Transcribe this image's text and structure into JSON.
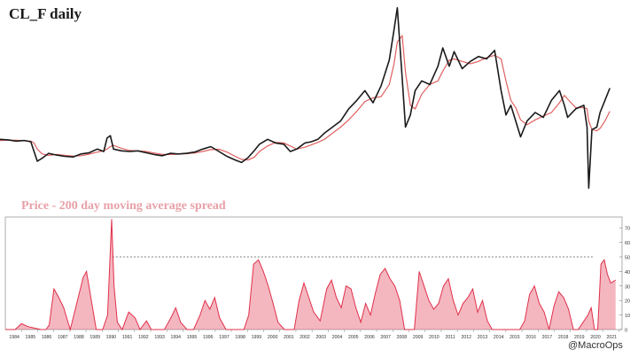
{
  "chart_data": [
    {
      "type": "line",
      "title": "CL_F daily",
      "ylabel": "",
      "xlabel": "",
      "grid": false,
      "x": [
        1984.0,
        1984.5,
        1985.0,
        1985.5,
        1985.9,
        1986.1,
        1986.3,
        1986.6,
        1987.0,
        1987.5,
        1988.0,
        1988.5,
        1989.0,
        1989.5,
        1990.0,
        1990.4,
        1990.6,
        1990.8,
        1991.0,
        1991.5,
        1992.0,
        1992.5,
        1993.0,
        1993.5,
        1994.0,
        1994.5,
        1995.0,
        1995.5,
        1996.0,
        1996.5,
        1997.0,
        1997.5,
        1998.0,
        1998.5,
        1998.9,
        1999.3,
        1999.7,
        2000.0,
        2000.5,
        2001.0,
        2001.5,
        2001.9,
        2002.3,
        2002.8,
        2003.2,
        2003.6,
        2004.0,
        2004.5,
        2005.0,
        2005.5,
        2006.0,
        2006.5,
        2007.0,
        2007.5,
        2008.0,
        2008.3,
        2008.5,
        2008.8,
        2009.0,
        2009.3,
        2009.6,
        2010.0,
        2010.5,
        2011.0,
        2011.3,
        2011.7,
        2012.0,
        2012.5,
        2013.0,
        2013.5,
        2014.0,
        2014.5,
        2014.9,
        2015.2,
        2015.5,
        2015.8,
        2016.1,
        2016.5,
        2017.0,
        2017.5,
        2018.0,
        2018.5,
        2018.8,
        2019.0,
        2019.5,
        2020.0,
        2020.2,
        2020.3,
        2020.5,
        2020.8,
        2021.0,
        2021.3,
        2021.6
      ],
      "series": [
        {
          "values": [
            30.0,
            29.5,
            28.5,
            29.0,
            28.0,
            20.0,
            12.0,
            14.5,
            18.5,
            17.0,
            16.0,
            15.5,
            18.0,
            19.0,
            22.0,
            20.0,
            31.0,
            33.0,
            22.0,
            20.5,
            20.0,
            20.5,
            19.0,
            17.5,
            16.5,
            18.5,
            18.0,
            18.5,
            19.5,
            22.0,
            24.0,
            20.0,
            16.0,
            13.0,
            11.0,
            15.0,
            21.0,
            26.0,
            30.0,
            27.0,
            26.0,
            20.0,
            22.0,
            27.0,
            28.0,
            30.0,
            35.0,
            40.0,
            45.0,
            55.0,
            62.0,
            70.0,
            60.0,
            74.0,
            95.0,
            120.0,
            138.0,
            80.0,
            40.0,
            50.0,
            70.0,
            78.0,
            75.0,
            90.0,
            105.0,
            90.0,
            102.0,
            88.0,
            94.0,
            98.0,
            96.0,
            103.0,
            70.0,
            50.0,
            58.0,
            45.0,
            32.0,
            45.0,
            52.0,
            48.0,
            62.0,
            70.0,
            58.0,
            48.0,
            55.0,
            58.0,
            40.0,
            -10.0,
            38.0,
            40.0,
            52.0,
            62.0,
            72.0
          ]
        },
        {
          "values": [
            29.0,
            29.3,
            29.2,
            28.8,
            28.5,
            27.0,
            22.0,
            18.0,
            16.8,
            17.5,
            16.8,
            16.2,
            16.5,
            17.8,
            19.5,
            20.5,
            22.0,
            24.0,
            25.0,
            22.5,
            20.8,
            20.5,
            20.0,
            18.8,
            17.5,
            17.5,
            17.8,
            18.2,
            18.8,
            20.0,
            21.5,
            21.8,
            19.5,
            16.0,
            13.5,
            13.0,
            15.5,
            20.0,
            24.5,
            27.5,
            27.0,
            24.5,
            22.0,
            23.5,
            25.5,
            27.5,
            30.0,
            35.0,
            40.0,
            46.0,
            53.0,
            61.0,
            64.0,
            65.0,
            75.0,
            92.0,
            110.0,
            115.0,
            85.0,
            58.0,
            55.0,
            67.0,
            75.0,
            78.0,
            86.0,
            95.0,
            96.0,
            94.0,
            92.0,
            94.0,
            97.0,
            99.0,
            96.0,
            78.0,
            62.0,
            56.0,
            46.0,
            42.0,
            46.0,
            49.0,
            52.0,
            60.0,
            66.0,
            63.0,
            56.0,
            56.0,
            55.0,
            45.0,
            38.0,
            37.0,
            39.0,
            45.0,
            53.0
          ]
        }
      ]
    },
    {
      "type": "area",
      "title": "Price - 200 day moving average spread",
      "ylim": [
        0,
        75
      ],
      "yticks": [
        "0",
        "10",
        "20",
        "30",
        "40",
        "50",
        "60",
        "70"
      ],
      "xtick_labels": [
        "1984",
        "1985",
        "1986",
        "1987",
        "1988",
        "1989",
        "1990",
        "1991",
        "1992",
        "1993",
        "1994",
        "1995",
        "1996",
        "1997",
        "1998",
        "1999",
        "2000",
        "2001",
        "2002",
        "2003",
        "2004",
        "2005",
        "2006",
        "2007",
        "2008",
        "2009",
        "2010",
        "2011",
        "2012",
        "2013",
        "2014",
        "2015",
        "2016",
        "2017",
        "2018",
        "2019",
        "2020",
        "2021"
      ],
      "reference_line": 50,
      "x": [
        1984.0,
        1984.6,
        1985.0,
        1985.4,
        1985.8,
        1986.2,
        1986.5,
        1986.7,
        1987.0,
        1987.3,
        1987.6,
        1988.0,
        1988.4,
        1988.8,
        1989.0,
        1989.3,
        1989.6,
        1990.0,
        1990.3,
        1990.55,
        1990.7,
        1990.9,
        1991.2,
        1991.6,
        1992.0,
        1992.3,
        1992.7,
        1993.0,
        1993.4,
        1993.8,
        1994.2,
        1994.5,
        1994.8,
        1995.2,
        1995.6,
        1996.0,
        1996.3,
        1996.6,
        1996.9,
        1997.2,
        1997.6,
        1998.0,
        1998.4,
        1998.7,
        1999.0,
        1999.3,
        1999.6,
        1999.9,
        2000.2,
        2000.5,
        2000.8,
        2001.2,
        2001.5,
        2001.8,
        2002.1,
        2002.4,
        2002.7,
        2003.0,
        2003.4,
        2003.8,
        2004.1,
        2004.4,
        2004.7,
        2005.0,
        2005.3,
        2005.6,
        2005.9,
        2006.2,
        2006.5,
        2006.8,
        2007.1,
        2007.4,
        2007.7,
        2008.0,
        2008.3,
        2008.6,
        2008.9,
        2009.2,
        2009.5,
        2009.8,
        2010.1,
        2010.4,
        2010.7,
        2011.0,
        2011.3,
        2011.6,
        2011.9,
        2012.2,
        2012.5,
        2012.8,
        2013.1,
        2013.4,
        2013.7,
        2014.0,
        2014.3,
        2014.6,
        2014.9,
        2015.3,
        2015.7,
        2016.0,
        2016.3,
        2016.6,
        2016.9,
        2017.2,
        2017.5,
        2017.8,
        2018.1,
        2018.4,
        2018.7,
        2019.0,
        2019.3,
        2019.6,
        2019.9,
        2020.1,
        2020.3,
        2020.5,
        2020.7,
        2020.9,
        2021.1,
        2021.3,
        2021.6
      ],
      "values": [
        0,
        0,
        4,
        2,
        1,
        0,
        0,
        3,
        28,
        22,
        15,
        0,
        18,
        36,
        40,
        20,
        0,
        0,
        10,
        76,
        30,
        5,
        0,
        12,
        8,
        0,
        6,
        0,
        0,
        0,
        8,
        15,
        5,
        0,
        0,
        10,
        20,
        14,
        22,
        8,
        0,
        0,
        0,
        0,
        10,
        45,
        48,
        40,
        30,
        18,
        5,
        0,
        0,
        0,
        20,
        32,
        22,
        12,
        6,
        28,
        34,
        22,
        15,
        30,
        28,
        15,
        5,
        18,
        10,
        25,
        38,
        42,
        35,
        30,
        20,
        0,
        0,
        0,
        40,
        30,
        20,
        14,
        18,
        30,
        35,
        20,
        10,
        18,
        22,
        28,
        12,
        20,
        6,
        0,
        0,
        0,
        0,
        0,
        0,
        6,
        24,
        30,
        18,
        12,
        0,
        16,
        26,
        22,
        14,
        0,
        0,
        5,
        10,
        15,
        0,
        0,
        45,
        48,
        38,
        32,
        34
      ]
    }
  ],
  "credit": "@MacroOps",
  "colors": {
    "price": "#1a1a1a",
    "ma": "#e06060",
    "spread": "#e0304a",
    "subtitle": "#e8a0a8",
    "reference": "#555555"
  }
}
